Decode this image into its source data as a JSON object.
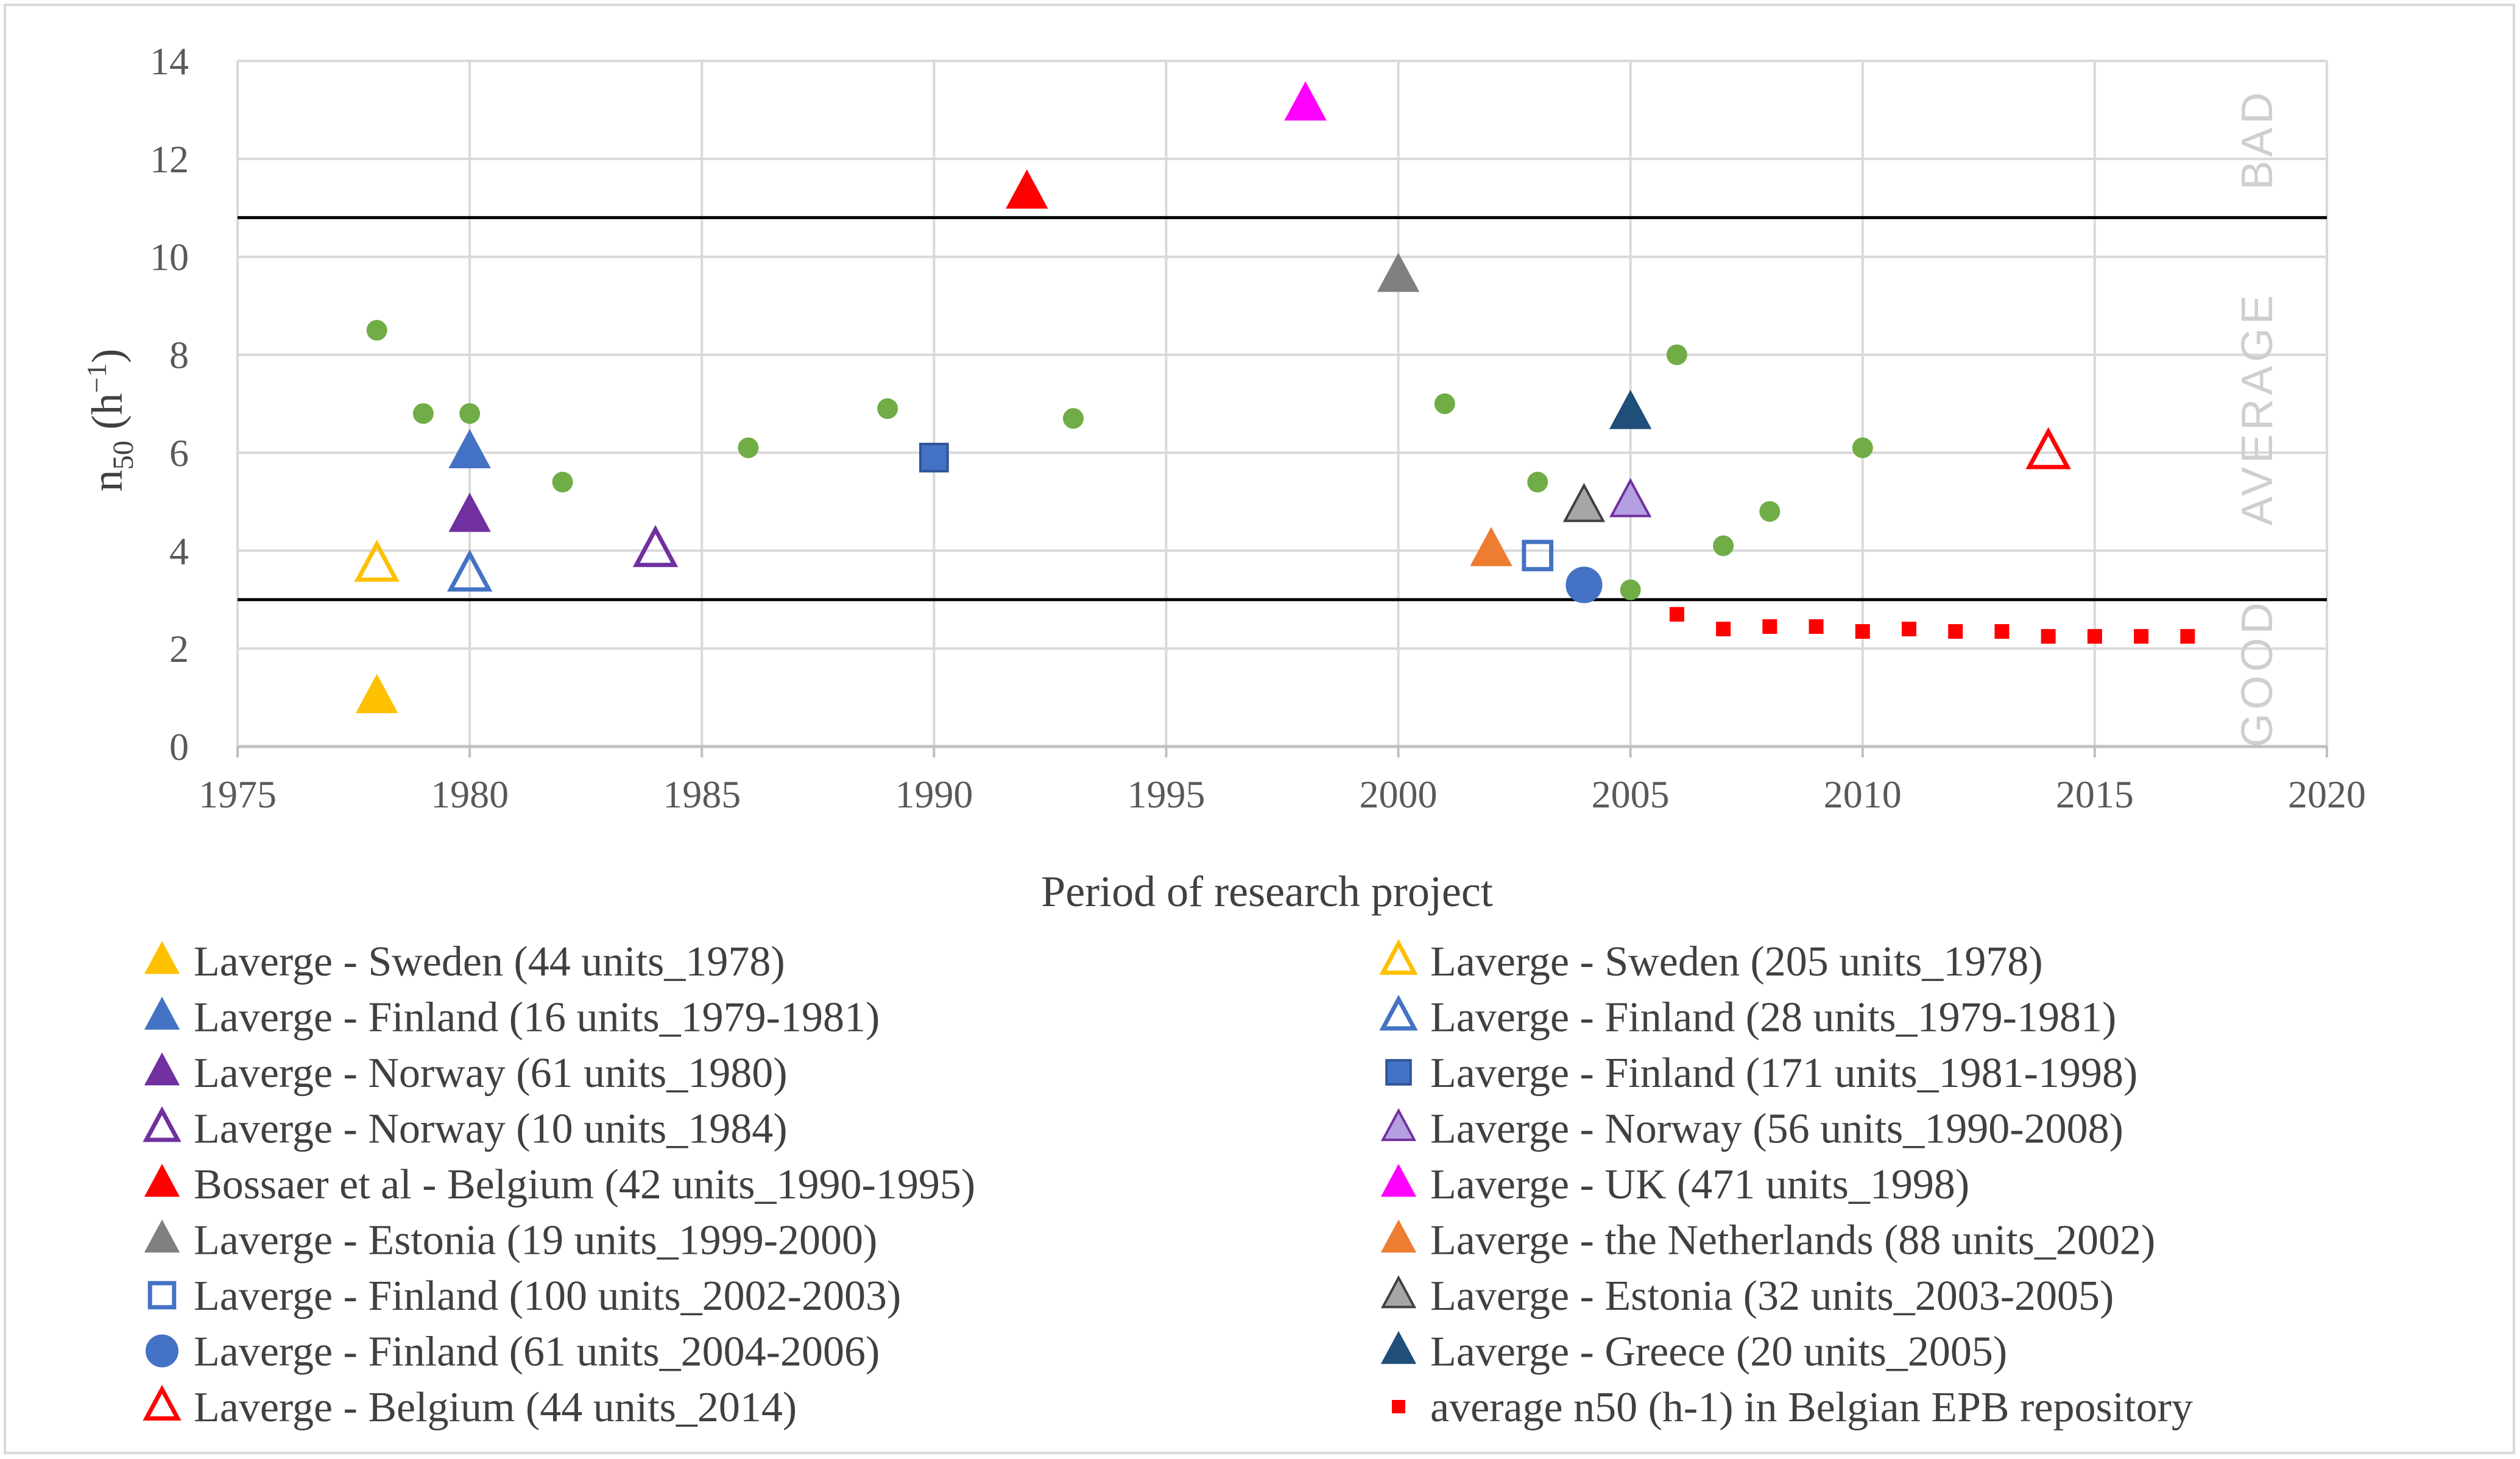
{
  "chart_data": {
    "type": "scatter",
    "xlabel": "Period of research project",
    "ylabel_main": "n",
    "ylabel_sub": "50",
    "ylabel_unit_open": " (h",
    "ylabel_unit_sup": "−1",
    "ylabel_unit_close": ")",
    "xlim": [
      1975,
      2020
    ],
    "ylim": [
      0,
      14
    ],
    "x_ticks": [
      1975,
      1980,
      1985,
      1990,
      1995,
      2000,
      2005,
      2010,
      2015,
      2020
    ],
    "y_ticks": [
      0,
      2,
      4,
      6,
      8,
      10,
      12,
      14
    ],
    "grid": true,
    "legend_position": "bottom",
    "thresholds": [
      3.0,
      10.8
    ],
    "zones": [
      {
        "label": "GOOD",
        "y": 1.5
      },
      {
        "label": "AVERAGE",
        "y": 6.9
      },
      {
        "label": "BAD",
        "y": 12.4
      }
    ],
    "background_series": {
      "marker": "circle-small",
      "color": "#70ad47",
      "points": [
        {
          "x": 1978,
          "y": 8.5
        },
        {
          "x": 1979,
          "y": 6.8
        },
        {
          "x": 1980,
          "y": 6.8
        },
        {
          "x": 1982,
          "y": 5.4
        },
        {
          "x": 1986,
          "y": 6.1
        },
        {
          "x": 1989,
          "y": 6.9
        },
        {
          "x": 1993,
          "y": 6.7
        },
        {
          "x": 2001,
          "y": 7.0
        },
        {
          "x": 2003,
          "y": 5.4
        },
        {
          "x": 2005,
          "y": 3.2
        },
        {
          "x": 2006,
          "y": 8.0
        },
        {
          "x": 2007,
          "y": 4.1
        },
        {
          "x": 2008,
          "y": 4.8
        },
        {
          "x": 2010,
          "y": 6.1
        }
      ]
    },
    "series": [
      {
        "name": "Laverge - Sweden (44 units_1978)",
        "marker": "triangle",
        "fill": "#ffc000",
        "stroke": "#ffc000",
        "x": 1978,
        "y": 1.0
      },
      {
        "name": "Laverge - Sweden (205 units_1978)",
        "marker": "triangle",
        "fill": "none",
        "stroke": "#ffc000",
        "x": 1978,
        "y": 3.7
      },
      {
        "name": "Laverge - Finland (16 units_1979-1981)",
        "marker": "triangle",
        "fill": "#4472c4",
        "stroke": "#4472c4",
        "x": 1980,
        "y": 6.0
      },
      {
        "name": "Laverge - Finland (28 units_1979-1981)",
        "marker": "triangle",
        "fill": "none",
        "stroke": "#4472c4",
        "x": 1980,
        "y": 3.5
      },
      {
        "name": "Laverge - Norway (61 units_1980)",
        "marker": "triangle",
        "fill": "#7030a0",
        "stroke": "#7030a0",
        "x": 1980,
        "y": 4.7
      },
      {
        "name": "Laverge - Finland (171 units_1981-1998)",
        "marker": "square",
        "fill": "#4472c4",
        "stroke": "#2f5597",
        "x": 1990,
        "y": 5.9
      },
      {
        "name": "Laverge - Norway (10 units_1984)",
        "marker": "triangle",
        "fill": "none",
        "stroke": "#7030a0",
        "x": 1984,
        "y": 4.0
      },
      {
        "name": "Laverge - Norway (56 units_1990-2008)",
        "marker": "triangle",
        "fill": "#b4a0e0",
        "stroke": "#7030a0",
        "x": 2005,
        "y": 5.0
      },
      {
        "name": "Bossaer et al - Belgium (42 units_1990-1995)",
        "marker": "triangle",
        "fill": "#ff0000",
        "stroke": "#ff0000",
        "x": 1992,
        "y": 11.3
      },
      {
        "name": "Laverge - UK (471 units_1998)",
        "marker": "triangle",
        "fill": "#ff00ff",
        "stroke": "#ff00ff",
        "x": 1998,
        "y": 13.1
      },
      {
        "name": "Laverge - Estonia (19 units_1999-2000)",
        "marker": "triangle",
        "fill": "#808080",
        "stroke": "#808080",
        "x": 2000,
        "y": 9.6
      },
      {
        "name": "Laverge - the Netherlands (88 units_2002)",
        "marker": "triangle",
        "fill": "#ed7d31",
        "stroke": "#ed7d31",
        "x": 2002,
        "y": 4.0
      },
      {
        "name": "Laverge - Finland (100 units_2002-2003)",
        "marker": "square",
        "fill": "none",
        "stroke": "#4472c4",
        "x": 2003,
        "y": 3.9
      },
      {
        "name": "Laverge - Estonia (32 units_2003-2005)",
        "marker": "triangle",
        "fill": "#a6a6a6",
        "stroke": "#404040",
        "x": 2004,
        "y": 4.9
      },
      {
        "name": "Laverge - Finland (61 units_2004-2006)",
        "marker": "circle",
        "fill": "#4472c4",
        "stroke": "#4472c4",
        "x": 2004,
        "y": 3.3
      },
      {
        "name": "Laverge - Greece (20 units_2005)",
        "marker": "triangle",
        "fill": "#1f4e79",
        "stroke": "#1f4e79",
        "x": 2005,
        "y": 6.8
      },
      {
        "name": "Laverge - Belgium (44 units_2014)",
        "marker": "triangle",
        "fill": "none",
        "stroke": "#ff0000",
        "x": 2014,
        "y": 6.0
      },
      {
        "name": "average n50 (h-1) in Belgian EPB repository",
        "marker": "square-small",
        "fill": "#ff0000",
        "stroke": "#ff0000",
        "points": [
          {
            "x": 2006,
            "y": 2.7
          },
          {
            "x": 2007,
            "y": 2.4
          },
          {
            "x": 2008,
            "y": 2.45
          },
          {
            "x": 2009,
            "y": 2.45
          },
          {
            "x": 2010,
            "y": 2.35
          },
          {
            "x": 2011,
            "y": 2.4
          },
          {
            "x": 2012,
            "y": 2.35
          },
          {
            "x": 2013,
            "y": 2.35
          },
          {
            "x": 2014,
            "y": 2.25
          },
          {
            "x": 2015,
            "y": 2.25
          },
          {
            "x": 2016,
            "y": 2.25
          },
          {
            "x": 2017,
            "y": 2.25
          }
        ]
      }
    ]
  }
}
